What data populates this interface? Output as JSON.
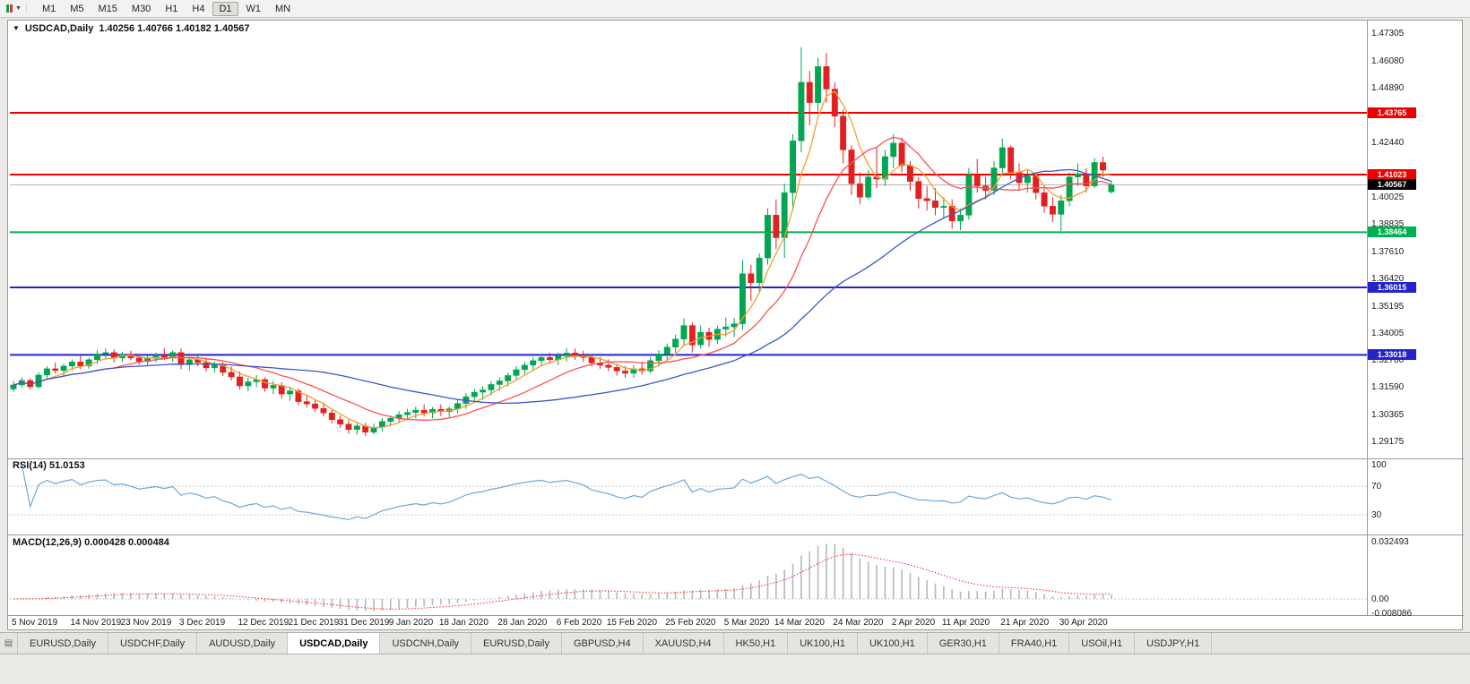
{
  "icons": {
    "chart_dropdown": "▼",
    "tab_list": "▤"
  },
  "toolbar": {
    "timeframes": [
      "M1",
      "M5",
      "M15",
      "M30",
      "H1",
      "H4",
      "D1",
      "W1",
      "MN"
    ],
    "active": "D1"
  },
  "tabs": {
    "items": [
      "EURUSD,Daily",
      "USDCHF,Daily",
      "AUDUSD,Daily",
      "USDCAD,Daily",
      "USDCNH,Daily",
      "EURUSD,Daily",
      "GBPUSD,H4",
      "XAUUSD,H4",
      "HK50,H1",
      "UK100,H1",
      "UK100,H1",
      "GER30,H1",
      "FRA40,H1",
      "USOil,H1",
      "USDJPY,H1"
    ],
    "active_index": 3
  },
  "chart_data": {
    "type": "candlestick",
    "symbol_timeframe": "USDCAD,Daily",
    "ohlc_label": "1.40256 1.40766 1.40182 1.40567",
    "ohlc_current": {
      "open": 1.40256,
      "high": 1.40766,
      "low": 1.40182,
      "close": 1.40567
    },
    "price_range": {
      "top": 1.47305,
      "bottom": 1.29175
    },
    "bull_color": "#00a651",
    "bear_color": "#e32020",
    "y_axis_ticks": [
      "1.47305",
      "1.46080",
      "1.44890",
      "1.42440",
      "1.40025",
      "1.38835",
      "1.37610",
      "1.36420",
      "1.35195",
      "1.34005",
      "1.32780",
      "1.31590",
      "1.30365",
      "1.29175"
    ],
    "horizontal_lines": [
      {
        "price": "1.43765",
        "value": 1.43765,
        "color": "#ee0000"
      },
      {
        "price": "1.41023",
        "value": 1.41023,
        "color": "#ee0000"
      },
      {
        "price": "1.38464",
        "value": 1.38464,
        "color": "#00b050"
      },
      {
        "price": "1.36015",
        "value": 1.36015,
        "color": "#2323c8"
      },
      {
        "price": "1.33018",
        "value": 1.33018,
        "color": "#2323c8"
      }
    ],
    "current_price": {
      "label": "1.40567",
      "value": 1.40567
    },
    "moving_averages": [
      {
        "type": "sma",
        "period": 5,
        "color": "#f0a030"
      },
      {
        "type": "sma",
        "period": 13,
        "color": "#ff5050"
      },
      {
        "type": "sma",
        "period": 34,
        "color": "#3a57c8"
      }
    ],
    "x_axis_labels": [
      {
        "text": "5 Nov 2019",
        "candle": 0
      },
      {
        "text": "14 Nov 2019",
        "candle": 7
      },
      {
        "text": "23 Nov 2019",
        "candle": 13
      },
      {
        "text": "3 Dec 2019",
        "candle": 20
      },
      {
        "text": "12 Dec 2019",
        "candle": 27
      },
      {
        "text": "21 Dec 2019",
        "candle": 33
      },
      {
        "text": "31 Dec 2019",
        "candle": 39
      },
      {
        "text": "9 Jan 2020",
        "candle": 45
      },
      {
        "text": "18 Jan 2020",
        "candle": 51
      },
      {
        "text": "28 Jan 2020",
        "candle": 58
      },
      {
        "text": "6 Feb 2020",
        "candle": 65
      },
      {
        "text": "15 Feb 2020",
        "candle": 71
      },
      {
        "text": "25 Feb 2020",
        "candle": 78
      },
      {
        "text": "5 Mar 2020",
        "candle": 85
      },
      {
        "text": "14 Mar 2020",
        "candle": 91
      },
      {
        "text": "24 Mar 2020",
        "candle": 98
      },
      {
        "text": "2 Apr 2020",
        "candle": 105
      },
      {
        "text": "11 Apr 2020",
        "candle": 111
      },
      {
        "text": "21 Apr 2020",
        "candle": 118
      },
      {
        "text": "30 Apr 2020",
        "candle": 125
      }
    ],
    "candles": [
      [
        1.315,
        1.3185,
        1.3138,
        1.3168
      ],
      [
        1.3168,
        1.3202,
        1.3155,
        1.3188
      ],
      [
        1.3188,
        1.3198,
        1.3148,
        1.316
      ],
      [
        1.316,
        1.3225,
        1.3152,
        1.3212
      ],
      [
        1.3212,
        1.3252,
        1.3192,
        1.324
      ],
      [
        1.324,
        1.3268,
        1.3218,
        1.3232
      ],
      [
        1.3232,
        1.3262,
        1.321,
        1.3252
      ],
      [
        1.3252,
        1.3282,
        1.3232,
        1.327
      ],
      [
        1.327,
        1.3298,
        1.3238,
        1.3252
      ],
      [
        1.3252,
        1.329,
        1.324,
        1.328
      ],
      [
        1.328,
        1.3322,
        1.3262,
        1.3306
      ],
      [
        1.3306,
        1.333,
        1.3282,
        1.3312
      ],
      [
        1.3312,
        1.3326,
        1.3268,
        1.3288
      ],
      [
        1.3288,
        1.3316,
        1.327,
        1.3302
      ],
      [
        1.3302,
        1.332,
        1.3278,
        1.3288
      ],
      [
        1.3288,
        1.3308,
        1.3258,
        1.3272
      ],
      [
        1.3272,
        1.33,
        1.3254,
        1.3286
      ],
      [
        1.3286,
        1.3312,
        1.3268,
        1.33
      ],
      [
        1.33,
        1.3332,
        1.328,
        1.329
      ],
      [
        1.329,
        1.3322,
        1.3272,
        1.3312
      ],
      [
        1.3312,
        1.333,
        1.3238,
        1.3258
      ],
      [
        1.3258,
        1.3292,
        1.3232,
        1.328
      ],
      [
        1.328,
        1.33,
        1.325,
        1.3268
      ],
      [
        1.3268,
        1.3288,
        1.3228,
        1.3244
      ],
      [
        1.3244,
        1.3272,
        1.3222,
        1.3256
      ],
      [
        1.3256,
        1.327,
        1.3208,
        1.3224
      ],
      [
        1.3224,
        1.325,
        1.3188,
        1.3204
      ],
      [
        1.3204,
        1.3228,
        1.3148,
        1.3164
      ],
      [
        1.3164,
        1.32,
        1.314,
        1.3182
      ],
      [
        1.3182,
        1.3212,
        1.3158,
        1.3192
      ],
      [
        1.3192,
        1.3202,
        1.3138,
        1.3154
      ],
      [
        1.3154,
        1.3186,
        1.3128,
        1.3166
      ],
      [
        1.3166,
        1.318,
        1.3108,
        1.3128
      ],
      [
        1.3128,
        1.316,
        1.3098,
        1.3142
      ],
      [
        1.3142,
        1.3152,
        1.3078,
        1.3094
      ],
      [
        1.3094,
        1.312,
        1.3068,
        1.3084
      ],
      [
        1.3084,
        1.3102,
        1.3048,
        1.3064
      ],
      [
        1.3064,
        1.309,
        1.3028,
        1.3044
      ],
      [
        1.3044,
        1.3062,
        1.2998,
        1.3014
      ],
      [
        1.3014,
        1.3032,
        1.2978,
        1.2994
      ],
      [
        1.2994,
        1.3012,
        1.2952,
        1.297
      ],
      [
        1.297,
        1.3002,
        1.2948,
        1.2986
      ],
      [
        1.2986,
        1.3,
        1.2942,
        1.2958
      ],
      [
        1.2958,
        1.2996,
        1.2948,
        1.298
      ],
      [
        1.298,
        1.3022,
        1.296,
        1.3006
      ],
      [
        1.3006,
        1.3032,
        1.2984,
        1.302
      ],
      [
        1.302,
        1.3052,
        1.3,
        1.3036
      ],
      [
        1.3036,
        1.3062,
        1.3012,
        1.3046
      ],
      [
        1.3046,
        1.3072,
        1.302,
        1.3056
      ],
      [
        1.3056,
        1.3082,
        1.3028,
        1.3044
      ],
      [
        1.3044,
        1.307,
        1.302,
        1.306
      ],
      [
        1.306,
        1.3082,
        1.303,
        1.305
      ],
      [
        1.305,
        1.3072,
        1.3024,
        1.3062
      ],
      [
        1.3062,
        1.3102,
        1.3042,
        1.3086
      ],
      [
        1.3086,
        1.3132,
        1.3062,
        1.3116
      ],
      [
        1.3116,
        1.3152,
        1.309,
        1.3136
      ],
      [
        1.3136,
        1.3162,
        1.3102,
        1.3146
      ],
      [
        1.3146,
        1.3186,
        1.3122,
        1.317
      ],
      [
        1.317,
        1.3202,
        1.3142,
        1.3186
      ],
      [
        1.3186,
        1.3222,
        1.3162,
        1.321
      ],
      [
        1.321,
        1.3252,
        1.319,
        1.3236
      ],
      [
        1.3236,
        1.3272,
        1.3212,
        1.3256
      ],
      [
        1.3256,
        1.3292,
        1.3232,
        1.3276
      ],
      [
        1.3276,
        1.3302,
        1.3252,
        1.329
      ],
      [
        1.329,
        1.3312,
        1.3262,
        1.328
      ],
      [
        1.328,
        1.3312,
        1.3256,
        1.3296
      ],
      [
        1.3296,
        1.3332,
        1.3272,
        1.331
      ],
      [
        1.331,
        1.333,
        1.328,
        1.33
      ],
      [
        1.33,
        1.332,
        1.327,
        1.329
      ],
      [
        1.329,
        1.3302,
        1.325,
        1.3266
      ],
      [
        1.3266,
        1.3292,
        1.324,
        1.3256
      ],
      [
        1.3256,
        1.3282,
        1.323,
        1.3246
      ],
      [
        1.3246,
        1.3262,
        1.321,
        1.323
      ],
      [
        1.323,
        1.3252,
        1.32,
        1.322
      ],
      [
        1.322,
        1.3256,
        1.32,
        1.324
      ],
      [
        1.324,
        1.3272,
        1.3214,
        1.323
      ],
      [
        1.323,
        1.3292,
        1.322,
        1.3276
      ],
      [
        1.3276,
        1.3322,
        1.325,
        1.3306
      ],
      [
        1.3306,
        1.3352,
        1.328,
        1.3336
      ],
      [
        1.3336,
        1.3392,
        1.331,
        1.3372
      ],
      [
        1.3372,
        1.3464,
        1.334,
        1.3432
      ],
      [
        1.3432,
        1.3446,
        1.3312,
        1.3346
      ],
      [
        1.3346,
        1.3432,
        1.333,
        1.3402
      ],
      [
        1.3402,
        1.3422,
        1.3338,
        1.337
      ],
      [
        1.337,
        1.3432,
        1.335,
        1.3416
      ],
      [
        1.3416,
        1.3468,
        1.3382,
        1.3426
      ],
      [
        1.3426,
        1.3466,
        1.338,
        1.344
      ],
      [
        1.344,
        1.3724,
        1.3412,
        1.3662
      ],
      [
        1.3662,
        1.3702,
        1.3542,
        1.3622
      ],
      [
        1.3622,
        1.3752,
        1.3582,
        1.3732
      ],
      [
        1.3732,
        1.3952,
        1.3702,
        1.3922
      ],
      [
        1.3922,
        1.3992,
        1.3772,
        1.3822
      ],
      [
        1.3822,
        1.4062,
        1.3732,
        1.4022
      ],
      [
        1.4022,
        1.4282,
        1.3942,
        1.4252
      ],
      [
        1.4252,
        1.4668,
        1.4202,
        1.4512
      ],
      [
        1.4512,
        1.4562,
        1.4322,
        1.4422
      ],
      [
        1.4422,
        1.4622,
        1.4382,
        1.4582
      ],
      [
        1.4582,
        1.4642,
        1.4422,
        1.4482
      ],
      [
        1.4482,
        1.4512,
        1.4312,
        1.4362
      ],
      [
        1.4362,
        1.4392,
        1.4152,
        1.4212
      ],
      [
        1.4212,
        1.4232,
        1.4012,
        1.4062
      ],
      [
        1.4062,
        1.4112,
        1.3972,
        1.4002
      ],
      [
        1.4002,
        1.4122,
        1.3992,
        1.4092
      ],
      [
        1.4092,
        1.4222,
        1.4042,
        1.4082
      ],
      [
        1.4082,
        1.4212,
        1.4052,
        1.4182
      ],
      [
        1.4182,
        1.4282,
        1.4132,
        1.4242
      ],
      [
        1.4242,
        1.4266,
        1.4112,
        1.4142
      ],
      [
        1.4142,
        1.4162,
        1.4032,
        1.4072
      ],
      [
        1.4072,
        1.4092,
        1.3952,
        1.3996
      ],
      [
        1.3996,
        1.4052,
        1.3942,
        1.3986
      ],
      [
        1.3986,
        1.4042,
        1.3922,
        1.3956
      ],
      [
        1.3956,
        1.4002,
        1.3912,
        1.3962
      ],
      [
        1.3962,
        1.3992,
        1.3862,
        1.3896
      ],
      [
        1.3896,
        1.3952,
        1.3856,
        1.3922
      ],
      [
        1.3922,
        1.4132,
        1.3902,
        1.4102
      ],
      [
        1.4102,
        1.4172,
        1.4022,
        1.4052
      ],
      [
        1.4052,
        1.4092,
        1.3992,
        1.4032
      ],
      [
        1.4032,
        1.4162,
        1.4012,
        1.4132
      ],
      [
        1.4132,
        1.4262,
        1.4102,
        1.4222
      ],
      [
        1.4222,
        1.4232,
        1.4082,
        1.4112
      ],
      [
        1.4112,
        1.4152,
        1.4032,
        1.4066
      ],
      [
        1.4066,
        1.4122,
        1.4022,
        1.4096
      ],
      [
        1.4096,
        1.4106,
        1.3992,
        1.4022
      ],
      [
        1.4022,
        1.4052,
        1.3932,
        1.3962
      ],
      [
        1.3962,
        1.4002,
        1.3892,
        1.3926
      ],
      [
        1.3926,
        1.4012,
        1.3852,
        1.3986
      ],
      [
        1.3986,
        1.4112,
        1.3962,
        1.4092
      ],
      [
        1.4092,
        1.4152,
        1.4052,
        1.4106
      ],
      [
        1.4106,
        1.4132,
        1.4022,
        1.4052
      ],
      [
        1.4052,
        1.4176,
        1.4042,
        1.4156
      ],
      [
        1.4156,
        1.4182,
        1.4092,
        1.4122
      ],
      [
        1.40256,
        1.40766,
        1.40182,
        1.40567
      ]
    ],
    "rsi": {
      "label": "RSI(14) 51.0153",
      "period": 14,
      "current": 51.0153,
      "levels": [
        100,
        70,
        30
      ],
      "color": "#69a8dd"
    },
    "macd": {
      "label": "MACD(12,26,9) 0.000428 0.000484",
      "params": [
        12,
        26,
        9
      ],
      "current": [
        0.000428,
        0.000484
      ],
      "axis": [
        "0.032493",
        "0.00",
        "-0.008086"
      ],
      "histogram_color": "#b8b8b8",
      "signal_color": "#ff2020"
    }
  }
}
